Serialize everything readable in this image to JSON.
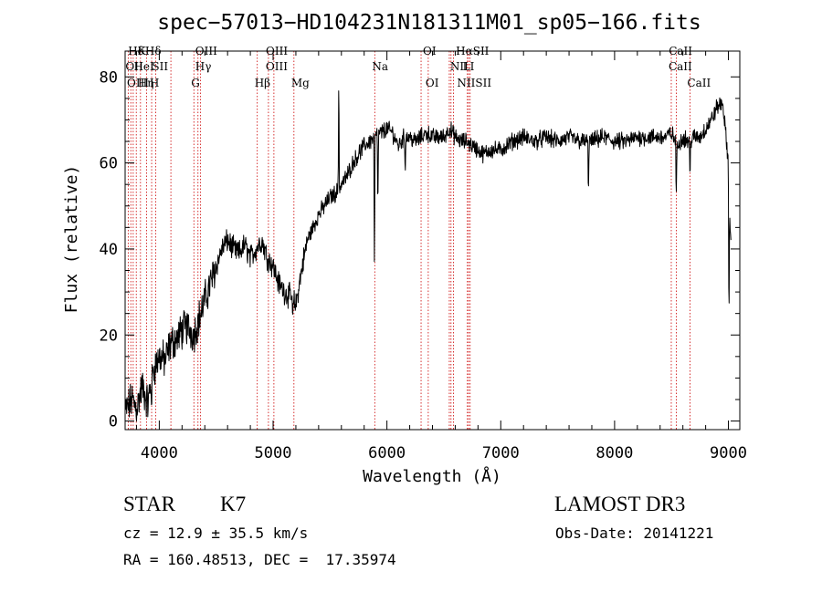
{
  "chart_data": {
    "type": "line",
    "title": "spec−57013−HD104231N181311M01_sp05−166.fits",
    "xlabel": "Wavelength (Å)",
    "ylabel": "Flux (relative)",
    "xlim": [
      3700,
      9100
    ],
    "ylim": [
      -2,
      86
    ],
    "xticks": [
      4000,
      5000,
      6000,
      7000,
      8000,
      9000
    ],
    "yticks": [
      0,
      20,
      40,
      60,
      80
    ],
    "grid": false,
    "line_color": "#000000",
    "marker_color": "#cc0000",
    "spectrum_anchors": {
      "x": [
        3700,
        3760,
        3800,
        3850,
        3900,
        3950,
        4000,
        4050,
        4100,
        4150,
        4200,
        4250,
        4300,
        4350,
        4400,
        4450,
        4500,
        4550,
        4600,
        4650,
        4700,
        4750,
        4800,
        4850,
        4900,
        4950,
        5000,
        5050,
        5100,
        5150,
        5200,
        5250,
        5300,
        5350,
        5400,
        5450,
        5500,
        5550,
        5600,
        5650,
        5700,
        5750,
        5800,
        5850,
        5890,
        5950,
        6000,
        6050,
        6100,
        6150,
        6200,
        6250,
        6300,
        6350,
        6400,
        6450,
        6500,
        6550,
        6600,
        6650,
        6700,
        6750,
        6800,
        6850,
        6900,
        7000,
        7100,
        7200,
        7300,
        7400,
        7500,
        7600,
        7700,
        7800,
        7900,
        8000,
        8100,
        8200,
        8300,
        8400,
        8450,
        8500,
        8550,
        8600,
        8650,
        8700,
        8750,
        8800,
        8850,
        8900,
        8950,
        9000,
        9020
      ],
      "y": [
        2,
        5,
        3,
        8,
        4,
        12,
        15,
        14,
        18,
        19,
        21,
        22,
        20,
        24,
        28,
        32,
        36,
        40,
        42,
        40,
        39,
        41,
        38,
        40,
        42,
        38,
        36,
        32,
        30,
        29,
        27,
        35,
        42,
        45,
        48,
        50,
        52,
        53,
        55,
        57,
        60,
        62,
        64,
        65,
        66,
        67,
        68,
        67,
        64,
        66,
        66,
        65,
        66,
        67,
        66,
        66,
        66,
        68,
        66,
        65,
        65,
        64,
        63,
        62,
        63,
        63,
        65,
        66,
        65,
        66,
        65,
        66,
        65,
        65,
        66,
        65,
        65,
        66,
        66,
        66,
        66,
        67,
        64,
        66,
        65,
        66,
        66,
        68,
        70,
        73,
        74,
        60,
        42
      ]
    },
    "absorption_features": [
      {
        "x": 5890,
        "depth": 32
      },
      {
        "x": 5920,
        "depth": 18
      },
      {
        "x": 6160,
        "depth": 8
      },
      {
        "x": 7770,
        "depth": 12
      },
      {
        "x": 8542,
        "depth": 14
      },
      {
        "x": 8662,
        "depth": 10
      },
      {
        "x": 5172,
        "depth": 6
      },
      {
        "x": 3933,
        "depth": 4
      },
      {
        "x": 9005,
        "depth": 35
      }
    ],
    "emission_features": [
      {
        "x": 5577,
        "height": 30
      }
    ],
    "spectral_lines": [
      {
        "label": "Hδ",
        "x": 3750,
        "row": 0
      },
      {
        "label": "K",
        "x": 3833,
        "row": 0
      },
      {
        "label": "Hδ",
        "x": 3900,
        "row": 0
      },
      {
        "label": "OIII",
        "x": 4340,
        "row": 0
      },
      {
        "label": "OIII",
        "x": 4960,
        "row": 0
      },
      {
        "label": "OI",
        "x": 6340,
        "row": 0
      },
      {
        "label": "HαSII",
        "x": 6630,
        "row": 0
      },
      {
        "label": "CaII",
        "x": 8500,
        "row": 0
      },
      {
        "label": "OII",
        "x": 3727,
        "row": 1
      },
      {
        "label": "HeI",
        "x": 3800,
        "row": 1
      },
      {
        "label": "SII",
        "x": 3960,
        "row": 1
      },
      {
        "label": "Hγ",
        "x": 4340,
        "row": 1
      },
      {
        "label": "OIII",
        "x": 4959,
        "row": 1
      },
      {
        "label": "Na",
        "x": 5893,
        "row": 1
      },
      {
        "label": "NII",
        "x": 6580,
        "row": 1
      },
      {
        "label": "LI",
        "x": 6690,
        "row": 1
      },
      {
        "label": "CaII",
        "x": 8498,
        "row": 1
      },
      {
        "label": "OIII",
        "x": 3740,
        "row": 2
      },
      {
        "label": "Hη",
        "x": 3835,
        "row": 2
      },
      {
        "label": "H",
        "x": 3940,
        "row": 2
      },
      {
        "label": "G",
        "x": 4304,
        "row": 2
      },
      {
        "label": "Hβ",
        "x": 4861,
        "row": 2
      },
      {
        "label": "Mg",
        "x": 5183,
        "row": 2
      },
      {
        "label": "OI",
        "x": 6363,
        "row": 2
      },
      {
        "label": "NIISII",
        "x": 6640,
        "row": 2
      },
      {
        "label": "CaII",
        "x": 8662,
        "row": 2
      }
    ],
    "marker_lines_x": [
      3727,
      3750,
      3771,
      3798,
      3835,
      3889,
      3933,
      3968,
      4102,
      4304,
      4340,
      4363,
      4861,
      4959,
      5007,
      5183,
      5893,
      6300,
      6363,
      6548,
      6563,
      6584,
      6707,
      6717,
      6731,
      8498,
      8542,
      8662
    ]
  },
  "info": {
    "object_type": "STAR",
    "subclass": "K7",
    "survey": "LAMOST DR3",
    "cz": "cz = 12.9 ± 35.5 km/s",
    "obs_date": "Obs-Date: 20141221",
    "coords": "RA = 160.48513, DEC =  17.35974"
  }
}
